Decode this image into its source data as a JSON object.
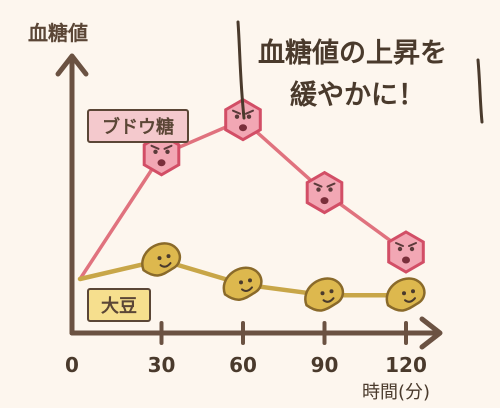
{
  "chart_data": {
    "type": "line",
    "title": "",
    "ylabel": "血糖値",
    "xlabel": "時間(分)",
    "x": [
      0,
      30,
      60,
      90,
      120
    ],
    "x_tick_labels": [
      "0",
      "30",
      "60",
      "90",
      "120"
    ],
    "xlim": [
      0,
      120
    ],
    "ylim": [
      0,
      10
    ],
    "grid": false,
    "legend": "inline",
    "series": [
      {
        "name": "ブドウ糖",
        "values": [
          2.0,
          6.6,
          7.9,
          5.2,
          3.0
        ],
        "color": "#e0727e"
      },
      {
        "name": "大豆",
        "values": [
          2.0,
          2.7,
          1.8,
          1.4,
          1.4
        ],
        "color": "#c8a648"
      }
    ],
    "annotations": [
      "血糖値の上昇を",
      "緩やかに！"
    ]
  }
}
